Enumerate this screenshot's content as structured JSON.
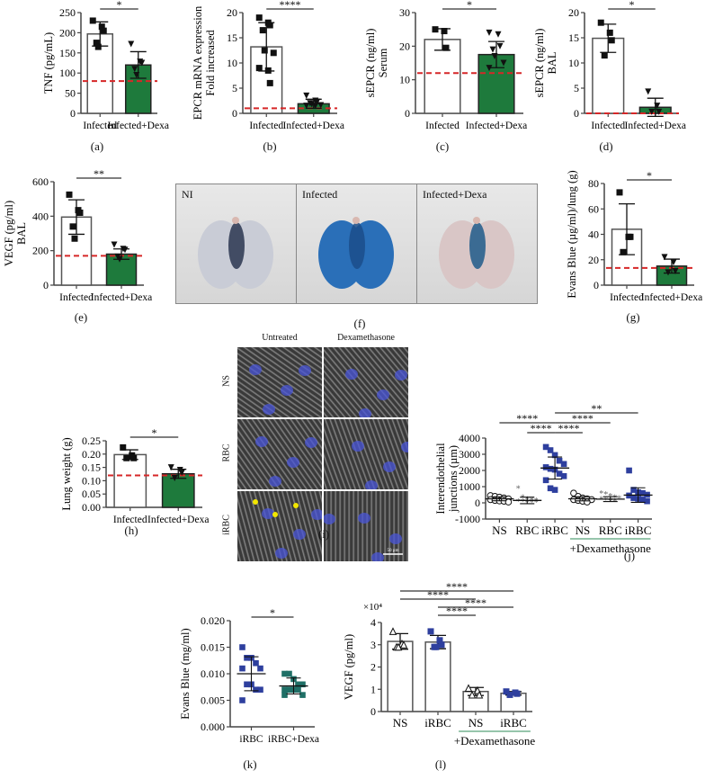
{
  "colors": {
    "open_bar": "#ffffff",
    "dexa_bar": "#1e7a3c",
    "baseline": "#d62728",
    "irbc_blue": "#2e3f9e",
    "teal": "#1f6f66",
    "dexa_line": "#2e8b57"
  },
  "chart_data": [
    {
      "id": "a",
      "type": "bar",
      "panel_label": "(a)",
      "categories": [
        "Infected",
        "Infected+Dexa"
      ],
      "values": [
        197,
        120
      ],
      "errors": [
        30,
        33
      ],
      "points": [
        [
          230,
          215,
          205,
          175,
          165
        ],
        [
          172,
          128,
          125,
          110,
          95
        ]
      ],
      "ylabel": "TNF (pg/mL)",
      "ylim": [
        0,
        250
      ],
      "yticks": [
        0,
        50,
        100,
        150,
        200,
        250
      ],
      "baseline": 80,
      "significance": [
        {
          "from": 0,
          "to": 1,
          "label": "*"
        }
      ]
    },
    {
      "id": "b",
      "type": "bar",
      "panel_label": "(b)",
      "categories": [
        "Infected",
        "Infected+Dexa"
      ],
      "values": [
        13.2,
        1.9
      ],
      "errors": [
        4.8,
        0.9
      ],
      "points": [
        [
          19,
          18,
          17.5,
          16.5,
          12.5,
          12,
          9,
          8.5,
          6
        ],
        [
          3.5,
          2.5,
          2.3,
          2,
          1.8,
          1.6,
          1.5,
          1.5
        ]
      ],
      "ylabel": "EPCR mRNA expression\nFold increased",
      "ylim": [
        0,
        20
      ],
      "yticks": [
        0,
        5,
        10,
        15,
        20
      ],
      "baseline": 1,
      "significance": [
        {
          "from": 0,
          "to": 1,
          "label": "****"
        }
      ]
    },
    {
      "id": "c",
      "type": "bar",
      "panel_label": "(c)",
      "categories": [
        "Infected",
        "Infected+Dexa"
      ],
      "values": [
        22,
        17.5
      ],
      "errors": [
        3.2,
        3.9
      ],
      "points": [
        [
          25,
          24.5,
          19.5
        ],
        [
          24,
          23.5,
          20,
          19,
          17,
          15,
          13.5
        ]
      ],
      "ylabel": "sEPCR (ng/ml)\nSerum",
      "ylim": [
        0,
        30
      ],
      "yticks": [
        0,
        10,
        20,
        30
      ],
      "baseline": 12,
      "significance": [
        {
          "from": 0,
          "to": 1,
          "label": "*"
        }
      ]
    },
    {
      "id": "d",
      "type": "bar",
      "panel_label": "(d)",
      "categories": [
        "Infected",
        "Infected+Dexa"
      ],
      "values": [
        14.9,
        1.2
      ],
      "errors": [
        2.8,
        1.8
      ],
      "points": [
        [
          18,
          16,
          14.5,
          11.5
        ],
        [
          4.3,
          1.5,
          0.3,
          0.3
        ]
      ],
      "ylabel": "sEPCR (ng/ml)\nBAL",
      "ylim": [
        0,
        20
      ],
      "yticks": [
        0,
        5,
        10,
        15,
        20
      ],
      "baseline": 0,
      "significance": [
        {
          "from": 0,
          "to": 1,
          "label": "*"
        }
      ]
    },
    {
      "id": "e",
      "type": "bar",
      "panel_label": "(e)",
      "categories": [
        "Infected",
        "Infected+Dexa"
      ],
      "values": [
        395,
        180
      ],
      "errors": [
        100,
        30
      ],
      "points": [
        [
          525,
          435,
          420,
          340,
          270
        ],
        [
          235,
          210,
          205,
          165,
          150
        ]
      ],
      "ylabel": "VEGF (pg/ml)\nBAL",
      "ylim": [
        0,
        600
      ],
      "yticks": [
        0,
        200,
        400,
        600
      ],
      "baseline": 170,
      "significance": [
        {
          "from": 0,
          "to": 1,
          "label": "**"
        }
      ]
    },
    {
      "id": "g",
      "type": "bar",
      "panel_label": "(g)",
      "categories": [
        "Infected",
        "Infected+Dexa"
      ],
      "values": [
        44,
        15
      ],
      "errors": [
        20,
        5.5
      ],
      "points": [
        [
          73,
          38,
          38,
          26
        ],
        [
          22,
          18,
          11,
          10
        ]
      ],
      "ylabel": "Evans Blue (µg/ml)/lung (g)",
      "ylim": [
        0,
        80
      ],
      "yticks": [
        0,
        20,
        40,
        60,
        80
      ],
      "baseline": 13.5,
      "significance": [
        {
          "from": 0,
          "to": 1,
          "label": "*"
        }
      ]
    },
    {
      "id": "h",
      "type": "bar",
      "panel_label": "(h)",
      "categories": [
        "Infected",
        "Infected+Dexa"
      ],
      "values": [
        0.198,
        0.126
      ],
      "errors": [
        0.018,
        0.017
      ],
      "points": [
        [
          0.225,
          0.195,
          0.185,
          0.185
        ],
        [
          0.15,
          0.14,
          0.13,
          0.11
        ]
      ],
      "ylabel": "Lung weight (g)",
      "ylim": [
        0,
        0.25
      ],
      "yticks": [
        0.0,
        0.05,
        0.1,
        0.15,
        0.2,
        0.25
      ],
      "tick_decimals": 2,
      "baseline": 0.12,
      "significance": [
        {
          "from": 0,
          "to": 1,
          "label": "*"
        }
      ]
    },
    {
      "id": "j",
      "type": "scatter",
      "panel_label": "(j)",
      "categories": [
        "NS",
        "RBC",
        "iRBC",
        "NS",
        "RBC",
        "iRBC"
      ],
      "group_label": "+Dexamethasone",
      "group_span": [
        3,
        5
      ],
      "means": [
        250,
        150,
        2150,
        250,
        230,
        480
      ],
      "errors": [
        120,
        200,
        680,
        130,
        150,
        450
      ],
      "markers": [
        "circle-open",
        "dot-gray",
        "square-blue",
        "circle-open",
        "dot-gray",
        "square-blue"
      ],
      "points": [
        [
          450,
          400,
          350,
          300,
          250,
          200,
          150,
          120,
          100,
          50
        ],
        [
          850,
          300,
          200,
          150,
          100,
          50,
          50,
          0,
          0,
          0
        ],
        [
          3450,
          3250,
          2950,
          2600,
          2400,
          2200,
          2100,
          2050,
          1800,
          1650,
          1400,
          900,
          800
        ],
        [
          600,
          400,
          300,
          250,
          200,
          200,
          150,
          100,
          50
        ],
        [
          550,
          500,
          400,
          300,
          250,
          200,
          150,
          100,
          50
        ],
        [
          2000,
          800,
          650,
          600,
          500,
          450,
          300,
          250,
          200,
          100
        ]
      ],
      "ylabel": "Interendothelial\njunctions (µm)",
      "ylim": [
        -1000,
        4000
      ],
      "yticks": [
        -1000,
        0,
        1000,
        2000,
        3000,
        4000
      ],
      "significance": [
        {
          "from": 0,
          "to": 2,
          "label": "****",
          "level": 1
        },
        {
          "from": 2,
          "to": 4,
          "label": "****",
          "level": 1
        },
        {
          "from": 2,
          "to": 5,
          "label": "**",
          "level": 2
        },
        {
          "from": 1,
          "to": 2,
          "label": "****",
          "level": 0
        },
        {
          "from": 2,
          "to": 3,
          "label": "****",
          "level": 0
        }
      ]
    },
    {
      "id": "k",
      "type": "scatter",
      "panel_label": "(k)",
      "categories": [
        "iRBC",
        "iRBC+Dexa"
      ],
      "means": [
        0.01,
        0.0077
      ],
      "errors": [
        0.0032,
        0.0015
      ],
      "points": [
        [
          0.015,
          0.013,
          0.013,
          0.012,
          0.011,
          0.011,
          0.008,
          0.008,
          0.007,
          0.007,
          0.005
        ],
        [
          0.01,
          0.01,
          0.009,
          0.008,
          0.008,
          0.007,
          0.007,
          0.007,
          0.007,
          0.006,
          0.006
        ]
      ],
      "ylabel": "Evans Blue (mg/ml)",
      "ylim": [
        0,
        0.02
      ],
      "yticks": [
        0.0,
        0.005,
        0.01,
        0.015,
        0.02
      ],
      "tick_decimals": 3,
      "significance": [
        {
          "from": 0,
          "to": 1,
          "label": "*"
        }
      ]
    },
    {
      "id": "l",
      "type": "bar",
      "panel_label": "(l)",
      "categories": [
        "NS",
        "iRBC",
        "NS",
        "iRBC"
      ],
      "group_label": "+Dexamethasone",
      "group_span": [
        2,
        3
      ],
      "values": [
        3.15,
        3.12,
        0.9,
        0.82
      ],
      "errors": [
        0.35,
        0.3,
        0.18,
        0.08
      ],
      "points": [
        [
          3.6,
          3.05,
          3.0,
          2.9,
          2.9
        ],
        [
          3.6,
          3.2,
          3.0,
          2.9,
          2.9
        ],
        [
          1.05,
          0.95,
          0.75,
          0.75
        ],
        [
          0.9,
          0.85,
          0.8,
          0.75
        ]
      ],
      "ylabel": "VEGF (pg/ml)",
      "yscale_label": "×10⁴",
      "ylim": [
        0,
        4
      ],
      "yticks": [
        0,
        1,
        2,
        3,
        4
      ],
      "significance": [
        {
          "from": 0,
          "to": 3,
          "label": "****",
          "level": 3
        },
        {
          "from": 0,
          "to": 2,
          "label": "****",
          "level": 2
        },
        {
          "from": 1,
          "to": 3,
          "label": "****",
          "level": 1
        },
        {
          "from": 1,
          "to": 2,
          "label": "****",
          "level": 0
        }
      ]
    }
  ],
  "photo_panel": {
    "panel_label": "(f)",
    "tiles": [
      {
        "label": "NI",
        "lung_color": "#c9ccd6",
        "stain": "#2a3550"
      },
      {
        "label": "Infected",
        "lung_color": "#2a6fb8",
        "stain": "#1b4d8a"
      },
      {
        "label": "Infected+Dexa",
        "lung_color": "#d9c6c6",
        "stain": "#1f5a8a"
      }
    ]
  },
  "microscopy_panel": {
    "panel_label": "(i)",
    "columns": [
      "Untreated",
      "Dexamethasone"
    ],
    "rows": [
      "NS",
      "RBC",
      "iRBC"
    ],
    "scale_bar": "50 µm"
  }
}
